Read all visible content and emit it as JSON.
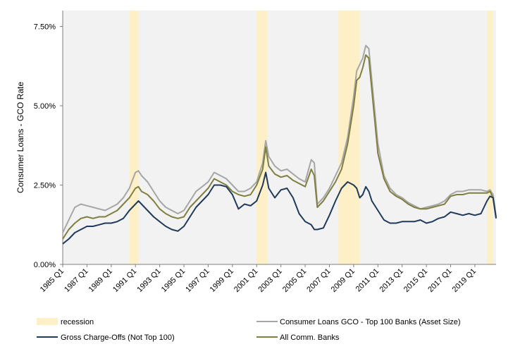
{
  "chart_data": {
    "type": "line",
    "title": "",
    "xlabel": "",
    "ylabel": "Consumer Loans - GCO Rate",
    "ylim": [
      0,
      8.0
    ],
    "y_ticks": [
      "0.00%",
      "2.50%",
      "5.00%",
      "7.50%"
    ],
    "y_tick_values": [
      0,
      2.5,
      5.0,
      7.5
    ],
    "x_start": 1985.0,
    "x_end": 2020.75,
    "x_ticks": [
      "1985 Q1",
      "1987 Q1",
      "1989 Q1",
      "1991 Q1",
      "1993 Q1",
      "1995 Q1",
      "1997 Q1",
      "1999 Q1",
      "2001 Q1",
      "2003 Q1",
      "2005 Q1",
      "2007 Q1",
      "2009 Q1",
      "2011 Q1",
      "2013 Q1",
      "2015 Q1",
      "2017 Q1",
      "2019 Q1"
    ],
    "x_tick_values": [
      1985,
      1987,
      1989,
      1991,
      1993,
      1995,
      1997,
      1999,
      2001,
      2003,
      2005,
      2007,
      2009,
      2011,
      2013,
      2015,
      2017,
      2019
    ],
    "recessions": [
      [
        1990.5,
        1991.25
      ],
      [
        2001.0,
        2001.9
      ],
      [
        2007.75,
        2009.5
      ],
      [
        2020.0,
        2020.5
      ]
    ],
    "legend": {
      "recession": "recession",
      "top100": "Consumer Loans GCO - Top 100 Banks (Asset Size)",
      "not_top100": "Gross Charge-Offs (Not Top 100)",
      "all_banks": "All Comm. Banks"
    },
    "colors": {
      "recession": "#fdf0c6",
      "plot_bg": "#f2f2f2",
      "top100": "#a6a6a6",
      "not_top100": "#1f3a5a",
      "all_banks": "#7f7f3f"
    },
    "series": [
      {
        "name": "Consumer Loans GCO - Top 100 Banks (Asset Size)",
        "x": [
          1985,
          1985.5,
          1986,
          1986.5,
          1987,
          1987.5,
          1988,
          1988.5,
          1989,
          1989.5,
          1990,
          1990.5,
          1991,
          1991.25,
          1991.5,
          1992,
          1992.5,
          1993,
          1993.5,
          1994,
          1994.5,
          1995,
          1995.5,
          1996,
          1996.5,
          1997,
          1997.5,
          1998,
          1998.5,
          1999,
          1999.5,
          2000,
          2000.5,
          2001,
          2001.5,
          2001.75,
          2002,
          2002.5,
          2003,
          2003.5,
          2004,
          2004.5,
          2005,
          2005.5,
          2005.75,
          2006,
          2006.5,
          2007,
          2007.5,
          2008,
          2008.5,
          2009,
          2009.25,
          2009.5,
          2009.75,
          2010,
          2010.25,
          2010.5,
          2011,
          2011.5,
          2012,
          2012.5,
          2013,
          2013.5,
          2014,
          2014.5,
          2015,
          2015.5,
          2016,
          2016.5,
          2017,
          2017.5,
          2018,
          2018.5,
          2019,
          2019.5,
          2020,
          2020.25,
          2020.5,
          2020.75
        ],
        "values": [
          1.0,
          1.4,
          1.8,
          1.9,
          1.85,
          1.8,
          1.75,
          1.7,
          1.8,
          1.9,
          2.1,
          2.4,
          2.9,
          2.95,
          2.8,
          2.6,
          2.3,
          2.0,
          1.8,
          1.7,
          1.6,
          1.7,
          2.0,
          2.3,
          2.45,
          2.6,
          2.9,
          2.8,
          2.7,
          2.5,
          2.3,
          2.3,
          2.4,
          2.6,
          3.2,
          3.9,
          3.4,
          3.1,
          2.95,
          3.0,
          2.85,
          2.7,
          2.6,
          3.3,
          3.2,
          1.9,
          2.1,
          2.4,
          2.8,
          3.2,
          4.0,
          5.3,
          6.1,
          6.3,
          6.5,
          6.9,
          6.8,
          5.8,
          3.8,
          2.8,
          2.4,
          2.2,
          2.1,
          1.95,
          1.85,
          1.75,
          1.8,
          1.85,
          1.9,
          2.0,
          2.2,
          2.3,
          2.3,
          2.35,
          2.35,
          2.35,
          2.3,
          2.35,
          2.2,
          1.5
        ]
      },
      {
        "name": "All Comm. Banks",
        "x": [
          1985,
          1985.5,
          1986,
          1986.5,
          1987,
          1987.5,
          1988,
          1988.5,
          1989,
          1989.5,
          1990,
          1990.5,
          1991,
          1991.25,
          1991.5,
          1992,
          1992.5,
          1993,
          1993.5,
          1994,
          1994.5,
          1995,
          1995.5,
          1996,
          1996.5,
          1997,
          1997.5,
          1998,
          1998.5,
          1999,
          1999.5,
          2000,
          2000.5,
          2001,
          2001.5,
          2001.75,
          2002,
          2002.5,
          2003,
          2003.5,
          2004,
          2004.5,
          2005,
          2005.5,
          2005.75,
          2006,
          2006.5,
          2007,
          2007.5,
          2008,
          2008.5,
          2009,
          2009.25,
          2009.5,
          2009.75,
          2010,
          2010.25,
          2010.5,
          2011,
          2011.5,
          2012,
          2012.5,
          2013,
          2013.5,
          2014,
          2014.5,
          2015,
          2015.5,
          2016,
          2016.5,
          2017,
          2017.5,
          2018,
          2018.5,
          2019,
          2019.5,
          2020,
          2020.25,
          2020.5,
          2020.75
        ],
        "values": [
          0.8,
          1.1,
          1.3,
          1.45,
          1.5,
          1.45,
          1.5,
          1.5,
          1.6,
          1.7,
          1.9,
          2.1,
          2.4,
          2.45,
          2.3,
          2.2,
          2.0,
          1.75,
          1.6,
          1.5,
          1.45,
          1.5,
          1.8,
          2.0,
          2.2,
          2.4,
          2.7,
          2.6,
          2.5,
          2.3,
          2.2,
          2.15,
          2.2,
          2.5,
          3.0,
          3.7,
          3.1,
          2.85,
          2.75,
          2.8,
          2.65,
          2.55,
          2.45,
          3.0,
          2.8,
          1.8,
          2.0,
          2.3,
          2.6,
          3.0,
          3.8,
          5.0,
          5.8,
          5.9,
          6.2,
          6.6,
          6.5,
          5.5,
          3.5,
          2.7,
          2.3,
          2.15,
          2.05,
          1.9,
          1.8,
          1.75,
          1.75,
          1.8,
          1.85,
          1.9,
          2.15,
          2.2,
          2.2,
          2.25,
          2.25,
          2.25,
          2.25,
          2.3,
          2.1,
          1.5
        ]
      },
      {
        "name": "Gross Charge-Offs (Not Top 100)",
        "x": [
          1985,
          1985.5,
          1986,
          1986.5,
          1987,
          1987.5,
          1988,
          1988.5,
          1989,
          1989.5,
          1990,
          1990.5,
          1991,
          1991.25,
          1991.5,
          1992,
          1992.5,
          1993,
          1993.5,
          1994,
          1994.5,
          1995,
          1995.5,
          1996,
          1996.5,
          1997,
          1997.5,
          1998,
          1998.5,
          1999,
          1999.5,
          2000,
          2000.5,
          2001,
          2001.5,
          2001.75,
          2002,
          2002.5,
          2003,
          2003.5,
          2004,
          2004.5,
          2005,
          2005.5,
          2005.75,
          2006,
          2006.5,
          2007,
          2007.5,
          2008,
          2008.5,
          2009,
          2009.25,
          2009.5,
          2009.75,
          2010,
          2010.25,
          2010.5,
          2011,
          2011.5,
          2012,
          2012.5,
          2013,
          2013.5,
          2014,
          2014.5,
          2015,
          2015.5,
          2016,
          2016.5,
          2017,
          2017.5,
          2018,
          2018.5,
          2019,
          2019.5,
          2020,
          2020.25,
          2020.5,
          2020.75
        ],
        "values": [
          0.65,
          0.8,
          1.0,
          1.1,
          1.2,
          1.2,
          1.25,
          1.3,
          1.3,
          1.35,
          1.45,
          1.7,
          1.9,
          2.0,
          1.9,
          1.7,
          1.5,
          1.35,
          1.2,
          1.1,
          1.05,
          1.2,
          1.5,
          1.8,
          2.0,
          2.2,
          2.5,
          2.5,
          2.45,
          2.2,
          1.75,
          1.9,
          1.85,
          2.0,
          2.5,
          2.9,
          2.4,
          2.1,
          2.35,
          2.4,
          2.1,
          1.6,
          1.35,
          1.25,
          1.1,
          1.1,
          1.15,
          1.55,
          2.0,
          2.4,
          2.6,
          2.5,
          2.4,
          2.1,
          2.2,
          2.45,
          2.3,
          2.0,
          1.7,
          1.4,
          1.3,
          1.3,
          1.35,
          1.35,
          1.35,
          1.4,
          1.3,
          1.35,
          1.45,
          1.5,
          1.65,
          1.6,
          1.55,
          1.6,
          1.55,
          1.6,
          2.0,
          2.15,
          2.1,
          1.45
        ]
      }
    ]
  }
}
